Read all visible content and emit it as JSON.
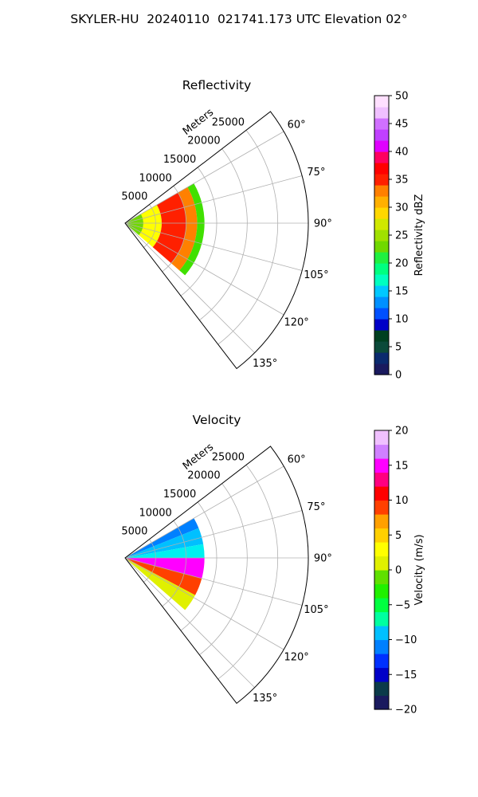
{
  "figure": {
    "title": "SKYLER-HU  20240110  021741.173 UTC Elevation 02°"
  },
  "chart_data": [
    {
      "type": "heatmap",
      "projection": "polar-sector",
      "title": "Reflectivity",
      "range_axis_label": "Meters",
      "range_ticks": [
        5000,
        10000,
        15000,
        20000,
        25000
      ],
      "range_tick_labels": [
        "5000",
        "10000",
        "15000",
        "20000",
        "25000"
      ],
      "range_max": 30000,
      "azimuth_range_deg": [
        52.5,
        142.5
      ],
      "azimuth_ticks": [
        60,
        75,
        90,
        105,
        120,
        135
      ],
      "azimuth_tick_labels": [
        "60°",
        "75°",
        "90°",
        "105°",
        "120°",
        "135°"
      ],
      "grid": true,
      "colorbar": {
        "label": "Reflectivity dBZ",
        "min": 0,
        "max": 50,
        "step": 2,
        "ticks": [
          0,
          5,
          10,
          15,
          20,
          25,
          30,
          35,
          40,
          45,
          50
        ],
        "tick_labels": [
          "0",
          "5",
          "10",
          "15",
          "20",
          "25",
          "30",
          "35",
          "40",
          "45",
          "50"
        ]
      },
      "echo_region": {
        "azimuth_range_deg": [
          60,
          131
        ],
        "max_range_m": 13000
      },
      "bands": [
        {
          "from_m": 0,
          "to_m": 3000,
          "value": 24
        },
        {
          "from_m": 3000,
          "to_m": 6000,
          "value": 28
        },
        {
          "from_m": 6000,
          "to_m": 10000,
          "value": 36
        },
        {
          "from_m": 10000,
          "to_m": 11800,
          "value": 32
        },
        {
          "from_m": 11800,
          "to_m": 13000,
          "value": 22
        }
      ]
    },
    {
      "type": "heatmap",
      "projection": "polar-sector",
      "title": "Velocity",
      "range_axis_label": "Meters",
      "range_ticks": [
        5000,
        10000,
        15000,
        20000,
        25000
      ],
      "range_tick_labels": [
        "5000",
        "10000",
        "15000",
        "20000",
        "25000"
      ],
      "range_max": 30000,
      "azimuth_range_deg": [
        52.5,
        142.5
      ],
      "azimuth_ticks": [
        60,
        75,
        90,
        105,
        120,
        135
      ],
      "azimuth_tick_labels": [
        "60°",
        "75°",
        "90°",
        "105°",
        "120°",
        "135°"
      ],
      "grid": true,
      "colorbar": {
        "label": "Velocity (m/s)",
        "min": -20,
        "max": 20,
        "step": 2,
        "ticks": [
          -20,
          -15,
          -10,
          -5,
          0,
          5,
          10,
          15,
          20
        ],
        "tick_labels": [
          "−20",
          "−15",
          "−10",
          "−5",
          "0",
          "5",
          "10",
          "15",
          "20"
        ]
      },
      "echo_region": {
        "azimuth_range_deg": [
          60,
          131
        ],
        "max_range_m": 13000
      },
      "azimuth_bands": [
        {
          "from_deg": 60,
          "to_deg": 68,
          "value": -12
        },
        {
          "from_deg": 68,
          "to_deg": 80,
          "value": -10
        },
        {
          "from_deg": 80,
          "to_deg": 90,
          "value": -8
        },
        {
          "from_deg": 90,
          "to_deg": 105,
          "value": 15
        },
        {
          "from_deg": 105,
          "to_deg": 118,
          "value": 10
        },
        {
          "from_deg": 118,
          "to_deg": 131,
          "value": 2
        }
      ]
    }
  ],
  "colormaps": {
    "reflectivity": [
      "#1a1a5e",
      "#0a2a6e",
      "#053a50",
      "#0b4a3a",
      "#004020",
      "#0000c8",
      "#0010ff",
      "#0050ff",
      "#0090ff",
      "#00c8ff",
      "#00e8f0",
      "#00ffc0",
      "#00ff80",
      "#20f040",
      "#40e000",
      "#70d800",
      "#a0e000",
      "#d0e800",
      "#ffff00",
      "#ffd800",
      "#ffb000",
      "#ff8000",
      "#ff5000",
      "#ff2000",
      "#ff0000",
      "#ff0060",
      "#ff00b0",
      "#e000ff",
      "#c040ff",
      "#d070ff",
      "#e0a0ff",
      "#f0c0ff",
      "#ffe0ff"
    ],
    "velocity": [
      "#1a1a5e",
      "#0b3a4a",
      "#004020",
      "#0000c8",
      "#0030ff",
      "#0080ff",
      "#00c0ff",
      "#00f0f0",
      "#00ffa0",
      "#00ff40",
      "#20f000",
      "#60e000",
      "#a0f000",
      "#e0f000",
      "#ffff00",
      "#ffd000",
      "#ffa000",
      "#ff7000",
      "#ff4000",
      "#ff0000",
      "#ff0080",
      "#ff00ff",
      "#c040ff",
      "#d080ff",
      "#f0c0ff"
    ]
  }
}
